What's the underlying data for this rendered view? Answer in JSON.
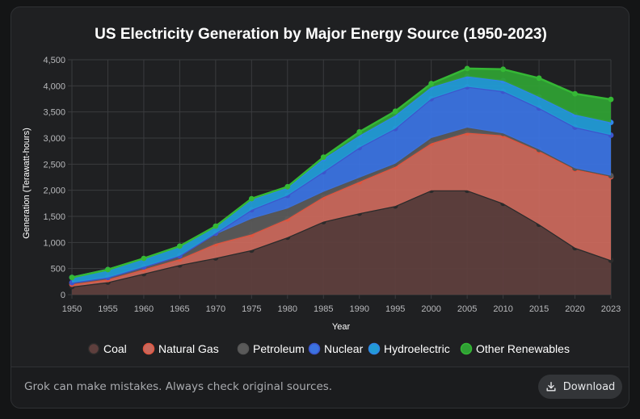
{
  "footer": {
    "disclaimer": "Grok can make mistakes. Always check original sources.",
    "download_label": "Download"
  },
  "chart_data": {
    "type": "area",
    "stacked": true,
    "title": "US Electricity Generation by Major Energy Source (1950-2023)",
    "xlabel": "Year",
    "ylabel": "Generation (Terawatt-hours)",
    "ylim": [
      0,
      4500
    ],
    "yticks": [
      0,
      500,
      1000,
      1500,
      2000,
      2500,
      3000,
      3500,
      4000,
      4500
    ],
    "ytick_labels": [
      "0",
      "500",
      "1,000",
      "1,500",
      "2,000",
      "2,500",
      "3,000",
      "3,500",
      "4,000",
      "4,500"
    ],
    "categories": [
      "1950",
      "1955",
      "1960",
      "1965",
      "1970",
      "1975",
      "1980",
      "1985",
      "1990",
      "1995",
      "2000",
      "2005",
      "2010",
      "2015",
      "2020",
      "2023"
    ],
    "grid": true,
    "legend_position": "bottom",
    "series": [
      {
        "name": "Coal",
        "color": "#2b2b2b",
        "fill": "#5e3f3d",
        "values": [
          155,
          240,
          403,
          571,
          704,
          853,
          1100,
          1400,
          1560,
          1700,
          2000,
          2000,
          1750,
          1350,
          900,
          660
        ]
      },
      {
        "name": "Natural Gas",
        "color": "#e0553f",
        "fill": "#c9685c",
        "values": [
          45,
          50,
          80,
          110,
          270,
          300,
          350,
          470,
          600,
          750,
          900,
          1100,
          1300,
          1400,
          1500,
          1600
        ]
      },
      {
        "name": "Petroleum",
        "color": "#555555",
        "fill": "#5a5a5a",
        "values": [
          30,
          40,
          50,
          60,
          180,
          300,
          200,
          100,
          80,
          60,
          100,
          100,
          40,
          30,
          20,
          20
        ]
      },
      {
        "name": "Nuclear",
        "color": "#3d55cc",
        "fill": "#3b73e0",
        "values": [
          0,
          0,
          1,
          4,
          22,
          173,
          251,
          384,
          577,
          673,
          754,
          782,
          807,
          797,
          789,
          775
        ]
      },
      {
        "name": "Hydroelectric",
        "color": "#2f86e8",
        "fill": "#229bd6",
        "values": [
          100,
          150,
          150,
          180,
          130,
          200,
          150,
          250,
          230,
          250,
          220,
          200,
          200,
          210,
          240,
          245
        ]
      },
      {
        "name": "Other Renewables",
        "color": "#35b835",
        "fill": "#2fa034",
        "values": [
          0,
          0,
          10,
          5,
          6,
          12,
          16,
          30,
          70,
          80,
          70,
          150,
          220,
          360,
          400,
          440
        ]
      }
    ]
  }
}
